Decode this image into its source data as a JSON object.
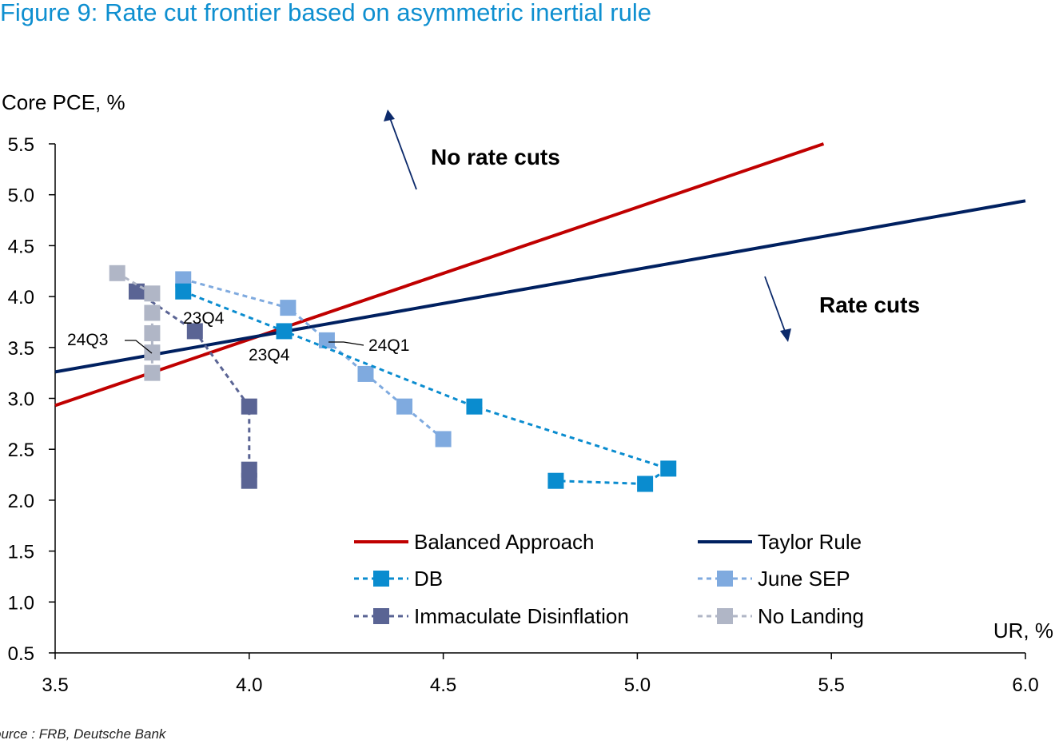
{
  "title": "Figure 9: Rate cut frontier based on asymmetric inertial rule",
  "source": "ource : FRB, Deutsche Bank",
  "chart_data": {
    "type": "line",
    "xlabel": "UR, %",
    "ylabel": "Core PCE, %",
    "xlim": [
      3.5,
      6.0
    ],
    "ylim": [
      0.5,
      5.5
    ],
    "x_ticks": [
      "3.5",
      "4.0",
      "4.5",
      "5.0",
      "5.5",
      "6.0"
    ],
    "y_ticks": [
      "0.5",
      "1.0",
      "1.5",
      "2.0",
      "2.5",
      "3.0",
      "3.5",
      "4.0",
      "4.5",
      "5.0",
      "5.5"
    ],
    "grid": false,
    "legend_position": "bottom-right",
    "series": [
      {
        "name": "Balanced Approach",
        "style": "solid",
        "marker": false,
        "color": "#c00000",
        "x": [
          3.5,
          5.48
        ],
        "y": [
          2.93,
          5.5
        ]
      },
      {
        "name": "Taylor Rule",
        "style": "solid",
        "marker": false,
        "color": "#002060",
        "x": [
          3.5,
          6.0
        ],
        "y": [
          3.26,
          4.94
        ]
      },
      {
        "name": "DB",
        "style": "dashed",
        "marker": true,
        "color": "#0a8ccf",
        "x": [
          3.83,
          4.09,
          4.58,
          5.08,
          5.02,
          4.79
        ],
        "y": [
          4.05,
          3.66,
          2.92,
          2.31,
          2.16,
          2.19
        ]
      },
      {
        "name": "June SEP",
        "style": "dashed",
        "marker": true,
        "color": "#7faadf",
        "x": [
          3.83,
          4.1,
          4.2,
          4.3,
          4.4,
          4.5
        ],
        "y": [
          4.17,
          3.89,
          3.57,
          3.24,
          2.92,
          2.6
        ]
      },
      {
        "name": "Immaculate Disinflation",
        "style": "dashed",
        "marker": true,
        "color": "#5a6494",
        "x": [
          3.71,
          3.86,
          4.0,
          4.0,
          4.0
        ],
        "y": [
          4.05,
          3.66,
          2.92,
          2.3,
          2.19
        ]
      },
      {
        "name": "No Landing",
        "style": "dashed",
        "marker": true,
        "color": "#b0b6c6",
        "x": [
          3.66,
          3.75,
          3.75,
          3.75,
          3.75,
          3.75
        ],
        "y": [
          4.23,
          4.03,
          3.84,
          3.64,
          3.45,
          3.25
        ]
      }
    ],
    "annotations": [
      {
        "text": "No rate cuts",
        "bold": true
      },
      {
        "text": "Rate cuts",
        "bold": true
      },
      {
        "text": "23Q4"
      },
      {
        "text": "23Q4"
      },
      {
        "text": "24Q1"
      },
      {
        "text": "24Q3"
      }
    ]
  }
}
